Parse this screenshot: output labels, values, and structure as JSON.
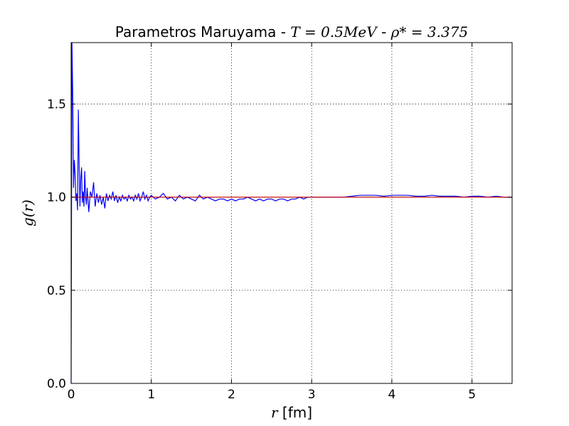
{
  "chart_data": {
    "type": "line",
    "title": {
      "prefix": "Parametros Maruyama - ",
      "math1": "T = 0.5MeV",
      "sep": " - ",
      "math2": "ρ* = 3.375"
    },
    "xlabel": {
      "math": "r",
      "text": " [fm]"
    },
    "ylabel": {
      "math": "g(r)"
    },
    "xlim": [
      0,
      5.5
    ],
    "ylim": [
      0,
      1.83
    ],
    "x_ticks": [
      0,
      1,
      2,
      3,
      4,
      5
    ],
    "x_tick_labels": [
      "0",
      "1",
      "2",
      "3",
      "4",
      "5"
    ],
    "y_ticks": [
      0.0,
      0.5,
      1.0,
      1.5
    ],
    "y_tick_labels": [
      "0.0",
      "0.5",
      "1.0",
      "1.5"
    ],
    "grid": true,
    "series": [
      {
        "color": "#0000ff",
        "x": [
          0.0,
          0.01,
          0.02,
          0.03,
          0.04,
          0.05,
          0.06,
          0.07,
          0.08,
          0.09,
          0.1,
          0.11,
          0.12,
          0.13,
          0.14,
          0.15,
          0.16,
          0.17,
          0.18,
          0.19,
          0.2,
          0.22,
          0.24,
          0.26,
          0.28,
          0.3,
          0.32,
          0.34,
          0.36,
          0.38,
          0.4,
          0.42,
          0.44,
          0.46,
          0.48,
          0.5,
          0.52,
          0.54,
          0.56,
          0.58,
          0.6,
          0.62,
          0.64,
          0.66,
          0.68,
          0.7,
          0.72,
          0.74,
          0.76,
          0.78,
          0.8,
          0.82,
          0.84,
          0.86,
          0.88,
          0.9,
          0.92,
          0.94,
          0.96,
          0.98,
          1.0,
          1.05,
          1.1,
          1.15,
          1.2,
          1.25,
          1.3,
          1.35,
          1.4,
          1.45,
          1.5,
          1.55,
          1.6,
          1.65,
          1.7,
          1.75,
          1.8,
          1.85,
          1.9,
          1.95,
          2.0,
          2.05,
          2.1,
          2.15,
          2.2,
          2.25,
          2.3,
          2.35,
          2.4,
          2.45,
          2.5,
          2.55,
          2.6,
          2.65,
          2.7,
          2.75,
          2.8,
          2.85,
          2.9,
          2.95,
          3.0,
          3.1,
          3.2,
          3.3,
          3.4,
          3.5,
          3.6,
          3.7,
          3.8,
          3.9,
          4.0,
          4.1,
          4.2,
          4.3,
          4.4,
          4.5,
          4.6,
          4.7,
          4.8,
          4.9,
          5.0,
          5.1,
          5.2,
          5.3,
          5.4,
          5.5
        ],
        "y": [
          0.0,
          1.83,
          1.55,
          1.05,
          1.2,
          1.12,
          0.98,
          1.02,
          0.93,
          1.47,
          1.18,
          0.95,
          1.1,
          1.16,
          0.97,
          1.03,
          0.95,
          1.14,
          1.0,
          0.96,
          1.05,
          0.92,
          1.03,
          1.0,
          1.08,
          0.95,
          1.02,
          0.97,
          1.01,
          0.96,
          1.0,
          0.94,
          1.02,
          0.98,
          1.01,
          0.99,
          1.03,
          0.98,
          1.01,
          0.97,
          1.0,
          0.98,
          1.01,
          0.99,
          1.0,
          0.98,
          1.01,
          0.99,
          1.0,
          0.98,
          1.01,
          0.99,
          1.02,
          0.98,
          1.0,
          1.03,
          0.99,
          1.01,
          0.98,
          1.0,
          1.01,
          0.99,
          1.0,
          1.02,
          0.99,
          1.0,
          0.98,
          1.01,
          0.99,
          1.0,
          0.99,
          0.98,
          1.01,
          0.99,
          1.0,
          0.99,
          0.98,
          0.99,
          0.99,
          0.98,
          0.99,
          0.98,
          0.99,
          0.99,
          1.0,
          0.99,
          0.98,
          0.99,
          0.98,
          0.99,
          0.99,
          0.98,
          0.99,
          0.99,
          0.98,
          0.99,
          0.99,
          1.0,
          0.99,
          1.0,
          1.0,
          1.0,
          1.0,
          1.0,
          1.0,
          1.005,
          1.01,
          1.01,
          1.01,
          1.005,
          1.01,
          1.01,
          1.01,
          1.005,
          1.005,
          1.01,
          1.005,
          1.005,
          1.005,
          1.0,
          1.005,
          1.005,
          1.0,
          1.005,
          1.0,
          1.0
        ]
      },
      {
        "color": "#cc0000",
        "x": [
          0,
          5.5
        ],
        "y": [
          1.0,
          1.0
        ]
      }
    ]
  }
}
